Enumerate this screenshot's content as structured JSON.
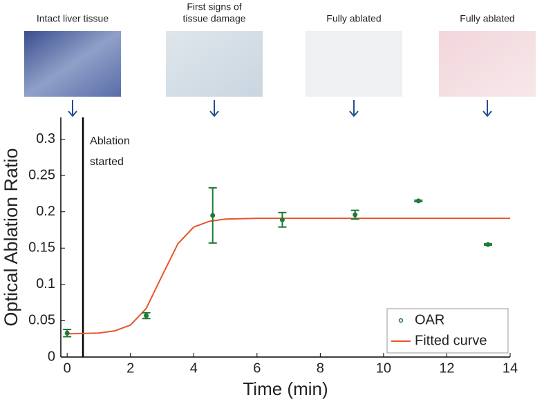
{
  "panels": [
    {
      "caption": [
        "Intact liver tissue"
      ]
    },
    {
      "caption": [
        "First signs of",
        "tissue damage"
      ]
    },
    {
      "caption": [
        "Fully ablated"
      ]
    },
    {
      "caption": [
        "Fully ablated"
      ]
    }
  ],
  "chart_data": {
    "type": "scatter",
    "xlabel": "Time (min)",
    "ylabel": "Optical Ablation Ratio",
    "xlim": [
      -0.2,
      14
    ],
    "ylim": [
      0,
      0.33
    ],
    "xticks": [
      0,
      2,
      4,
      6,
      8,
      10,
      12,
      14
    ],
    "yticks": [
      0,
      0.05,
      0.1,
      0.15,
      0.2,
      0.25,
      0.3
    ],
    "vline": 0.5,
    "annotation": [
      "Ablation",
      "started"
    ],
    "legend": "lower right",
    "series": [
      {
        "name": "OAR",
        "type": "scatter",
        "color": "#1f7a3a",
        "x": [
          0,
          2.5,
          4.6,
          6.8,
          9.1,
          11.1,
          13.3
        ],
        "values": [
          0.033,
          0.057,
          0.195,
          0.189,
          0.196,
          0.215,
          0.155
        ],
        "errors": [
          0.005,
          0.004,
          0.038,
          0.01,
          0.006,
          0.001,
          0.001
        ]
      },
      {
        "name": "Fitted curve",
        "type": "line",
        "color": "#e8552a",
        "x": [
          0,
          1,
          1.5,
          2,
          2.5,
          3,
          3.5,
          4,
          4.5,
          5,
          6,
          8,
          10,
          12,
          14
        ],
        "values": [
          0.032,
          0.033,
          0.036,
          0.044,
          0.067,
          0.112,
          0.156,
          0.179,
          0.187,
          0.19,
          0.191,
          0.191,
          0.191,
          0.191,
          0.191
        ]
      }
    ]
  }
}
